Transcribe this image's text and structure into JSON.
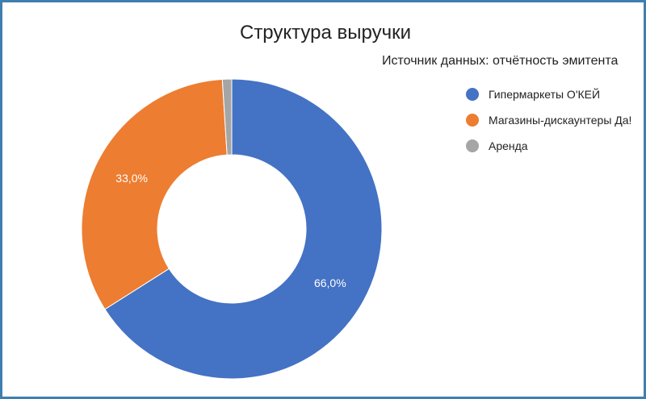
{
  "chart_data": {
    "type": "pie",
    "variant": "donut",
    "title": "Структура выручки",
    "subtitle": "Источник данных: отчётность эмитента",
    "legend_position": "right",
    "categories": [
      "Гипермаркеты О'КЕЙ",
      "Магазины-дискаунтеры Да!",
      "Аренда"
    ],
    "values": [
      66.0,
      33.0,
      1.0
    ],
    "data_labels": [
      "66,0%",
      "33,0%",
      ""
    ],
    "colors": [
      "#4472c4",
      "#ed7d31",
      "#a5a5a5"
    ]
  }
}
